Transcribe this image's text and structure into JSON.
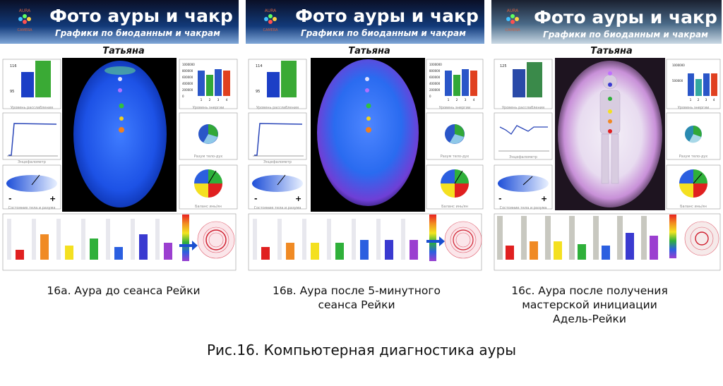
{
  "panels": [
    {
      "header_title": "Фото ауры и чакр",
      "header_subtitle": "Графики по биоданным и чакрам",
      "logo_top": "AURA",
      "logo_bottom": "CAMERA",
      "name": "Татьяна",
      "caption": "16а. Аура до сеанса Рейки",
      "relax_ticks": [
        "116",
        "95"
      ],
      "energy_ticks": [
        "1000000",
        "800000",
        "600000",
        "400000",
        "200000",
        "0"
      ],
      "energy_cats": [
        "1",
        "2",
        "3",
        "4"
      ],
      "minus": "-",
      "plus": "+"
    },
    {
      "header_title": "Фото ауры и чакр",
      "header_subtitle": "Графики по биоданным и чакрам",
      "logo_top": "AURA",
      "logo_bottom": "CAMERA",
      "name": "Татьяна",
      "caption_line1": "16в. Аура после 5-минутного",
      "caption_line2": "сеанса Рейки",
      "relax_ticks": [
        "114",
        "95"
      ],
      "energy_ticks": [
        "1000000",
        "800000",
        "600000",
        "400000",
        "200000",
        "0"
      ],
      "energy_cats": [
        "1",
        "2",
        "3",
        "4"
      ],
      "minus": "-",
      "plus": "+"
    },
    {
      "header_title": "Фото ауры и чакр",
      "header_subtitle": "Графики по биоданным и чакрам",
      "logo_top": "AURA",
      "logo_bottom": "CAMERA",
      "name": "Татьяна",
      "caption_line1": "16с. Аура после получения",
      "caption_line2": "мастерской инициации",
      "caption_line3": "Адель-Рейки",
      "relax_ticks": [
        "125"
      ],
      "energy_ticks": [
        "1000000",
        "500000"
      ],
      "energy_cats": [
        "1",
        "2",
        "3",
        "4"
      ],
      "minus": "-",
      "plus": "+"
    }
  ],
  "figure_title": "Рис.16. Компьютерная диагностика ауры",
  "colors": {
    "header_bg": "#0a0f24",
    "header_title": "#ffffff",
    "aura_blue": "#1e5be0",
    "relax_blue": "#1c3fc6",
    "relax_green": "#3aaa35",
    "energy_bar": "#2a56c8",
    "chakra_red": "#e02020",
    "chakra_orange": "#f08a24",
    "chakra_yellow": "#f4e020",
    "chakra_green": "#2fb03a",
    "chakra_blue": "#2b5fe0",
    "chakra_indigo": "#3a3ad0",
    "chakra_violet": "#9b3fd0"
  }
}
